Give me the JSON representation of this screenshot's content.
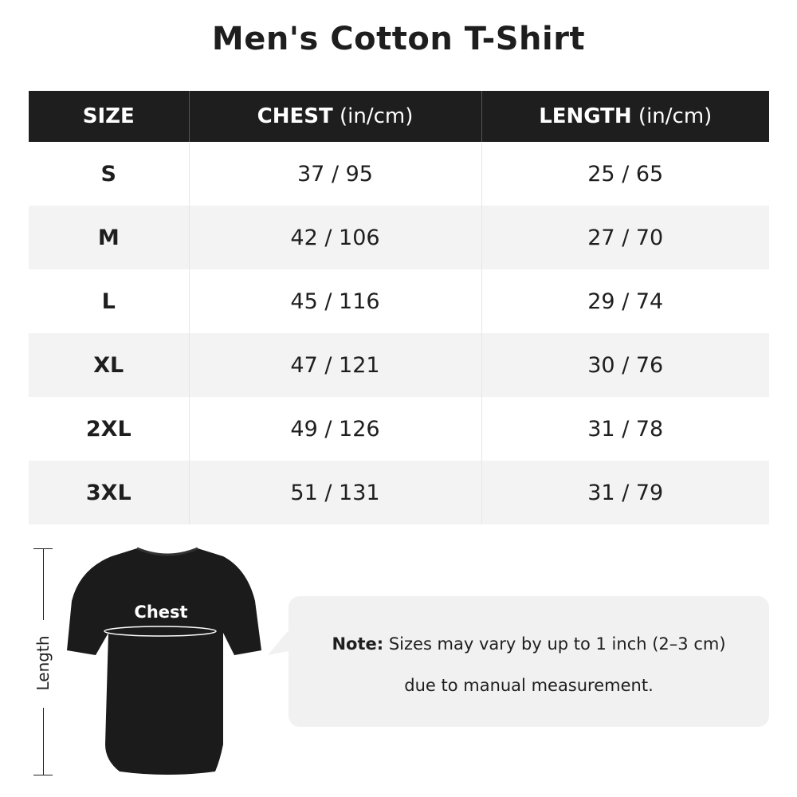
{
  "title": "Men's Cotton T-Shirt",
  "table": {
    "headers": [
      {
        "label": "SIZE",
        "unit": ""
      },
      {
        "label": "CHEST",
        "unit": " (in/cm)"
      },
      {
        "label": "LENGTH",
        "unit": " (in/cm)"
      }
    ],
    "rows": [
      {
        "size": "S",
        "chest": "37 / 95",
        "length": "25 / 65"
      },
      {
        "size": "M",
        "chest": "42 / 106",
        "length": "27 / 70"
      },
      {
        "size": "L",
        "chest": "45 / 116",
        "length": "29 / 74"
      },
      {
        "size": "XL",
        "chest": "47 / 121",
        "length": "30 / 76"
      },
      {
        "size": "2XL",
        "chest": "49 / 126",
        "length": "31 / 78"
      },
      {
        "size": "3XL",
        "chest": "51 / 131",
        "length": "31 / 79"
      }
    ]
  },
  "diagram": {
    "chest_label": "Chest",
    "length_label": "Length",
    "shirt_color": "#1b1b1b"
  },
  "note": {
    "prefix": "Note:",
    "line1": " Sizes may vary by up to 1 inch (2–3 cm)",
    "line2": "due to manual measurement."
  },
  "colors": {
    "header_bg": "#1e1e1e",
    "alt_row": "#f3f3f3",
    "note_bg": "#f1f1f1"
  }
}
